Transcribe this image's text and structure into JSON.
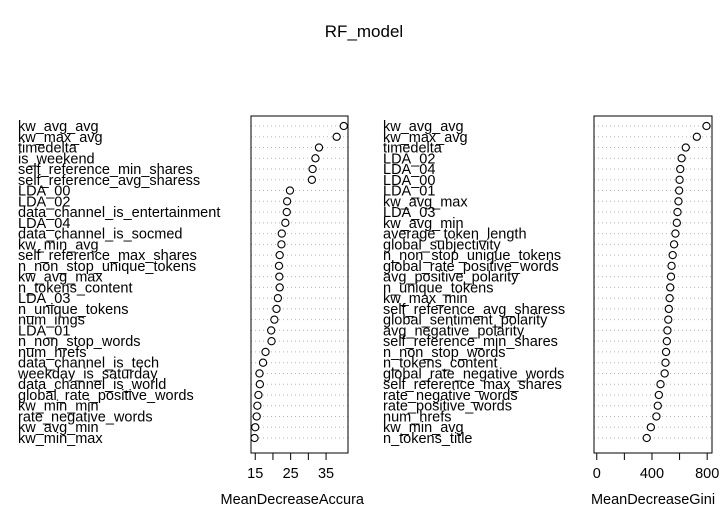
{
  "title": "RF_model",
  "chart_data": [
    {
      "type": "dotchart",
      "xlabel": "MeanDecreaseAccuracy",
      "xlim": [
        13.8,
        41.2
      ],
      "xticks": [
        15,
        25,
        35
      ],
      "categories": [
        "kw_avg_avg",
        "kw_max_avg",
        "timedelta",
        "is_weekend",
        "self_reference_min_shares",
        "self_reference_avg_sharess",
        "LDA_00",
        "LDA_02",
        "data_channel_is_entertainment",
        "LDA_04",
        "data_channel_is_socmed",
        "kw_min_avg",
        "self_reference_max_shares",
        "n_non_stop_unique_tokens",
        "kw_avg_max",
        "n_tokens_content",
        "LDA_03",
        "n_unique_tokens",
        "num_imgs",
        "LDA_01",
        "n_non_stop_words",
        "num_hrefs",
        "data_channel_is_tech",
        "weekday_is_saturday",
        "data_channel_is_world",
        "global_rate_positive_words",
        "kw_min_min",
        "rate_negative_words",
        "kw_avg_min",
        "kw_min_max"
      ],
      "values": [
        40.0,
        38.0,
        33.0,
        32.0,
        31.2,
        31.0,
        24.8,
        24.0,
        23.9,
        23.5,
        22.5,
        22.4,
        21.9,
        21.7,
        21.8,
        21.9,
        21.4,
        21.0,
        20.4,
        19.5,
        19.6,
        17.9,
        17.2,
        16.2,
        16.3,
        15.9,
        15.6,
        15.4,
        15.0,
        14.8
      ]
    },
    {
      "type": "dotchart",
      "xlabel": "MeanDecreaseGini",
      "xlim": [
        -20,
        835
      ],
      "xticks": [
        0,
        400,
        800
      ],
      "categories": [
        "kw_avg_avg",
        "kw_max_avg",
        "timedelta",
        "LDA_02",
        "LDA_04",
        "LDA_00",
        "LDA_01",
        "kw_avg_max",
        "LDA_03",
        "kw_avg_min",
        "average_token_length",
        "global_subjectivity",
        "n_non_stop_unique_tokens",
        "global_rate_positive_words",
        "avg_positive_polarity",
        "n_unique_tokens",
        "kw_max_min",
        "self_reference_avg_sharess",
        "global_sentiment_polarity",
        "avg_negative_polarity",
        "self_reference_min_shares",
        "n_non_stop_words",
        "n_tokens_content",
        "global_rate_negative_words",
        "self_reference_max_shares",
        "rate_negative_words",
        "rate_positive_words",
        "num_hrefs",
        "kw_min_avg",
        "n_tokens_title"
      ],
      "values": [
        795,
        725,
        645,
        615,
        605,
        600,
        597,
        592,
        585,
        580,
        570,
        560,
        550,
        542,
        538,
        532,
        528,
        522,
        518,
        512,
        508,
        502,
        498,
        492,
        462,
        450,
        442,
        432,
        392,
        362
      ]
    }
  ]
}
